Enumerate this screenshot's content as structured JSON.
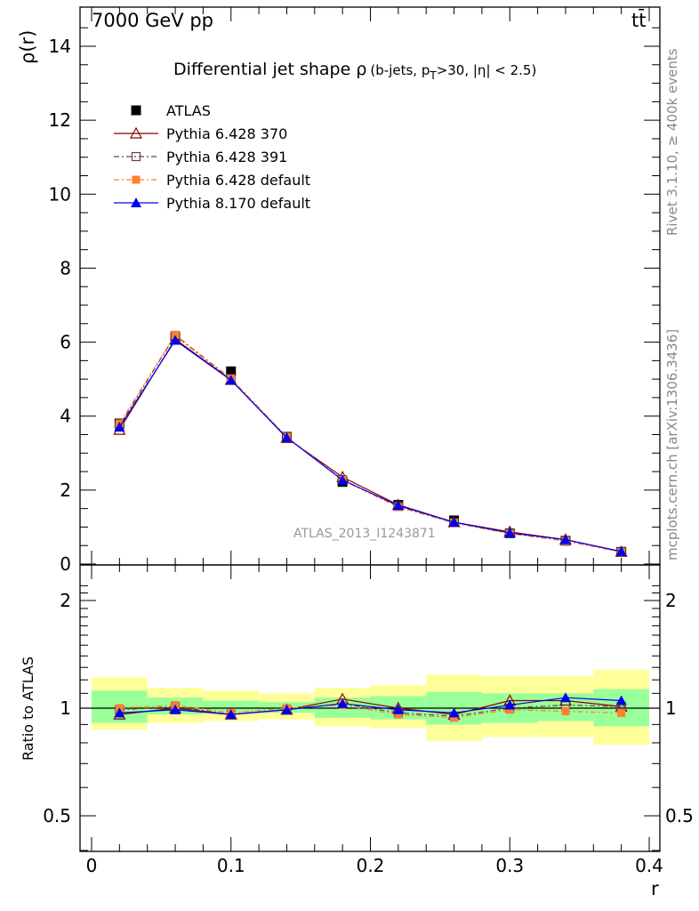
{
  "header": {
    "left": "7000 GeV pp",
    "right": "tt̄"
  },
  "side_labels": {
    "rivet": "Rivet 3.1.10, ≥ 400k events",
    "mcplots": "mcplots.cern.ch [arXiv:1306.3436]"
  },
  "chart_data": [
    {
      "type": "line",
      "panel": "main",
      "title_main": "Differential jet shape ρ",
      "title_sub": "(b-jets, p",
      "title_sub_sub": "T",
      "title_sub_rest": ">30, |η| < 2.5)",
      "watermark": "ATLAS_2013_I1243871",
      "ylabel": "ρ(r)",
      "xlim": [
        -0.01,
        0.4
      ],
      "ylim": [
        0,
        14.5
      ],
      "yticks": [
        0,
        2,
        4,
        6,
        8,
        10,
        12,
        14
      ],
      "legend_position": "top-left",
      "x": [
        0.02,
        0.06,
        0.1,
        0.14,
        0.18,
        0.22,
        0.26,
        0.3,
        0.34,
        0.38
      ],
      "series": [
        {
          "name": "ATLAS",
          "color": "#000000",
          "marker": "square-filled",
          "line": "none",
          "values": [
            3.8,
            6.13,
            5.21,
            3.44,
            2.22,
            1.6,
            1.18,
            0.83,
            0.63,
            0.33
          ]
        },
        {
          "name": "Pythia 6.428 370",
          "color": "#8b0000",
          "marker": "triangle-open",
          "line": "solid",
          "values": [
            3.63,
            6.08,
            4.98,
            3.41,
            2.35,
            1.6,
            1.13,
            0.87,
            0.66,
            0.33
          ]
        },
        {
          "name": "Pythia 6.428 391",
          "color": "#6b4040",
          "marker": "square-open",
          "line": "dashdot",
          "values": [
            3.74,
            6.18,
            4.99,
            3.43,
            2.28,
            1.56,
            1.12,
            0.83,
            0.64,
            0.33
          ]
        },
        {
          "name": "Pythia 6.428 default",
          "color": "#ff8030",
          "marker": "square-filled-small",
          "line": "dashdot",
          "values": [
            3.8,
            6.2,
            5.02,
            3.44,
            2.27,
            1.54,
            1.11,
            0.82,
            0.62,
            0.32
          ]
        },
        {
          "name": "Pythia 8.170 default",
          "color": "#0000ee",
          "marker": "triangle-filled",
          "line": "solid",
          "values": [
            3.7,
            6.05,
            4.97,
            3.42,
            2.27,
            1.58,
            1.13,
            0.84,
            0.66,
            0.34
          ]
        }
      ]
    },
    {
      "type": "line",
      "panel": "ratio",
      "ylabel": "Ratio to ATLAS",
      "xlabel": "r",
      "scale": "log",
      "ylim": [
        0.4,
        2.3
      ],
      "yticks": [
        0.5,
        1,
        2
      ],
      "ytick_labels": [
        "0.5",
        "1",
        "2"
      ],
      "xlim": [
        -0.01,
        0.4
      ],
      "xticks": [
        0,
        0.1,
        0.2,
        0.3,
        0.4
      ],
      "xtick_labels": [
        "0",
        "0.1",
        "0.2",
        "0.3",
        "0.4"
      ],
      "band_colors": {
        "inner": "#99ff99",
        "outer": "#ffff99"
      },
      "bins": [
        [
          0,
          0.04
        ],
        [
          0.04,
          0.08
        ],
        [
          0.08,
          0.12
        ],
        [
          0.12,
          0.16
        ],
        [
          0.16,
          0.2
        ],
        [
          0.2,
          0.24
        ],
        [
          0.24,
          0.28
        ],
        [
          0.28,
          0.32
        ],
        [
          0.32,
          0.36
        ],
        [
          0.36,
          0.4
        ]
      ],
      "band_inner": [
        [
          0.91,
          1.12
        ],
        [
          0.96,
          1.07
        ],
        [
          0.97,
          1.05
        ],
        [
          0.97,
          1.04
        ],
        [
          0.94,
          1.07
        ],
        [
          0.93,
          1.08
        ],
        [
          0.9,
          1.11
        ],
        [
          0.91,
          1.1
        ],
        [
          0.92,
          1.1
        ],
        [
          0.89,
          1.13
        ]
      ],
      "band_outer": [
        [
          0.87,
          1.22
        ],
        [
          0.91,
          1.14
        ],
        [
          0.92,
          1.12
        ],
        [
          0.93,
          1.1
        ],
        [
          0.89,
          1.14
        ],
        [
          0.88,
          1.16
        ],
        [
          0.81,
          1.24
        ],
        [
          0.83,
          1.23
        ],
        [
          0.83,
          1.23
        ],
        [
          0.79,
          1.28
        ]
      ],
      "x": [
        0.02,
        0.06,
        0.1,
        0.14,
        0.18,
        0.22,
        0.26,
        0.3,
        0.34,
        0.38
      ],
      "series": [
        {
          "name": "Pythia 6.428 370",
          "color": "#8b0000",
          "marker": "triangle-open",
          "line": "solid",
          "values": [
            0.96,
            1.0,
            0.96,
            0.99,
            1.06,
            1.0,
            0.96,
            1.05,
            1.05,
            1.01
          ]
        },
        {
          "name": "Pythia 6.428 391",
          "color": "#6b4040",
          "marker": "square-open",
          "line": "dashdot",
          "values": [
            0.99,
            1.01,
            0.96,
            0.99,
            1.03,
            0.97,
            0.95,
            1.0,
            1.02,
            1.01
          ]
        },
        {
          "name": "Pythia 6.428 default",
          "color": "#ff8030",
          "marker": "square-filled-small",
          "line": "dashdot",
          "values": [
            1.0,
            1.02,
            0.97,
            1.0,
            1.02,
            0.96,
            0.94,
            0.99,
            0.98,
            0.97
          ]
        },
        {
          "name": "Pythia 8.170 default",
          "color": "#0000ee",
          "marker": "triangle-filled",
          "line": "solid",
          "values": [
            0.97,
            0.99,
            0.96,
            0.99,
            1.03,
            0.99,
            0.97,
            1.02,
            1.07,
            1.05
          ]
        }
      ]
    }
  ]
}
